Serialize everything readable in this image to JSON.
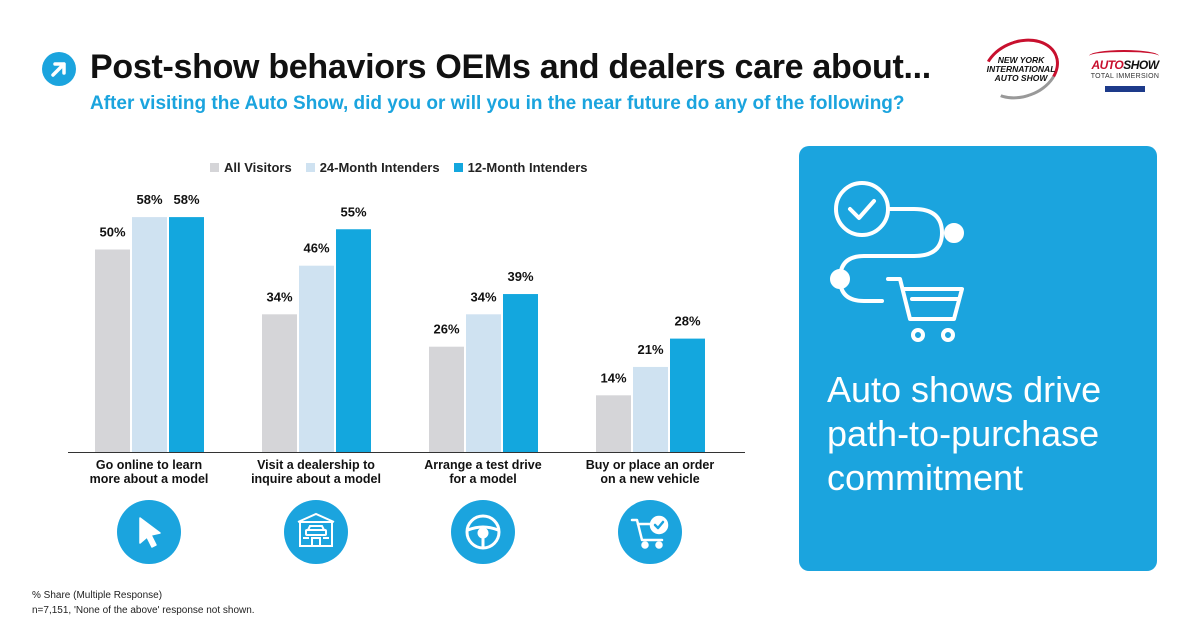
{
  "header": {
    "title": "Post-show behaviors OEMs and dealers care about...",
    "subtitle": "After visiting the Auto Show, did you or will you in the near future do any of the following?"
  },
  "logos": {
    "nyias": "NEW YORK INTERNATIONAL AUTO SHOW",
    "autoshow_brand_a": "AUTO",
    "autoshow_brand_b": "SHOW",
    "autoshow_sub": "TOTAL IMMERSION"
  },
  "colors": {
    "accent": "#1ba4de",
    "all_visitors": "#d5d5d8",
    "intenders_24": "#cfe2f1",
    "intenders_12": "#13a7de",
    "panel_bg": "#1ba4de"
  },
  "chart_data": {
    "type": "bar",
    "categories": [
      "Go online to learn more about a model",
      "Visit a dealership to inquire about a model",
      "Arrange a test drive for a model",
      "Buy or place an order on a new vehicle"
    ],
    "series": [
      {
        "name": "All Visitors",
        "values": [
          50,
          34,
          26,
          14
        ]
      },
      {
        "name": "24-Month Intenders",
        "values": [
          58,
          46,
          34,
          21
        ]
      },
      {
        "name": "12-Month Intenders",
        "values": [
          58,
          55,
          39,
          28
        ]
      }
    ],
    "value_suffix": "%",
    "ylim": [
      0,
      100
    ],
    "grid": false,
    "legend_position": "top",
    "title": "",
    "xlabel": "",
    "ylabel": ""
  },
  "category_labels": [
    {
      "line1": "Go online to learn",
      "line2": "more about a model",
      "icon": "cursor-icon"
    },
    {
      "line1": "Visit a dealership to",
      "line2": "inquire about a model",
      "icon": "dealership-icon"
    },
    {
      "line1": "Arrange a test drive",
      "line2": "for a model",
      "icon": "steering-wheel-icon"
    },
    {
      "line1": "Buy or place an order",
      "line2": "on a new vehicle",
      "icon": "cart-check-icon"
    }
  ],
  "footnotes": {
    "line1": "% Share (Multiple Response)",
    "line2": "n=7,151, 'None of the above' response not shown."
  },
  "panel": {
    "headline": "Auto shows drive path-to-purchase commitment",
    "icon": "purchase-journey-icon"
  }
}
